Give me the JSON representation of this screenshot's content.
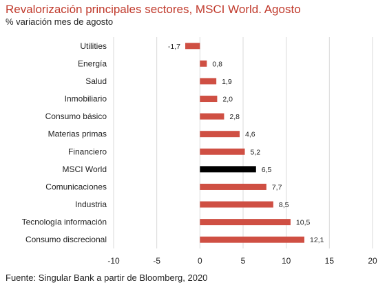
{
  "title": "Revalorización principales sectores, MSCI World. Agosto",
  "subtitle": "% variación mes de agosto",
  "source": "Fuente: Singular Bank a partir de Bloomberg, 2020",
  "chart_data": {
    "type": "bar",
    "orientation": "horizontal",
    "categories": [
      "Utilities",
      "Energía",
      "Salud",
      "Inmobiliario",
      "Consumo básico",
      "Materias primas",
      "Financiero",
      "MSCI World",
      "Comunicaciones",
      "Industria",
      "Tecnología información",
      "Consumo discrecional"
    ],
    "values": [
      -1.7,
      0.8,
      1.9,
      2.0,
      2.8,
      4.6,
      5.2,
      6.5,
      7.7,
      8.5,
      10.5,
      12.1
    ],
    "data_labels": [
      "-1,7",
      "0,8",
      "1,9",
      "2,0",
      "2,8",
      "4,6",
      "5,2",
      "6,5",
      "7,7",
      "8,5",
      "10,5",
      "12,1"
    ],
    "xlim": [
      -10,
      20
    ],
    "x_ticks": [
      -10,
      -5,
      0,
      5,
      10,
      15,
      20
    ],
    "x_tick_labels": [
      "-10",
      "-5",
      "0",
      "5",
      "10",
      "15",
      "20"
    ],
    "grid": true,
    "bar_color": "#cf4f43",
    "highlight_category": "MSCI World",
    "highlight_color": "#000000"
  }
}
